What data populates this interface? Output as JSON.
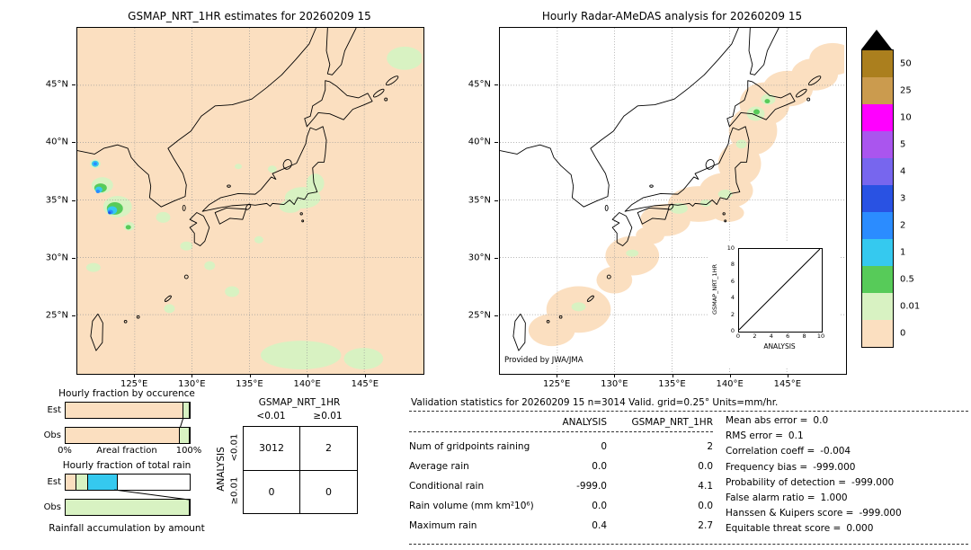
{
  "chart_data": [
    {
      "type": "heatmap",
      "title": "GSMAP_NRT_1HR estimates for 20260209 15",
      "x_ticks": [
        "125°E",
        "130°E",
        "135°E",
        "140°E",
        "145°E"
      ],
      "y_ticks": [
        "25°N",
        "30°N",
        "35°N",
        "40°N",
        "45°N"
      ],
      "units": "mm/hr",
      "levels": [
        0,
        0.01,
        0.5,
        1,
        2,
        3,
        4,
        5,
        10,
        25,
        50
      ],
      "notes": "mostly 0 (peach) with light-rain patches (0.01-0.5) and small intense cells (1-5 mm/hr) in the Yellow Sea west of Korea"
    },
    {
      "type": "heatmap",
      "title": "Hourly Radar-AMeDAS analysis for 20260209 15",
      "x_ticks": [
        "125°E",
        "130°E",
        "135°E",
        "140°E",
        "145°E"
      ],
      "y_ticks": [
        "25°N",
        "30°N",
        "35°N",
        "40°N",
        "45°N"
      ],
      "units": "mm/hr",
      "levels": [
        0,
        0.01,
        0.5,
        1,
        2,
        3,
        4,
        5,
        10,
        25,
        50
      ],
      "notes": "radar coverage band (0 values, peach) along the Japanese archipelago with scattered 0.01-0.5 patches"
    },
    {
      "type": "table",
      "title": "Contingency table",
      "columns": [
        "<0.01",
        "≥0.01"
      ],
      "rows": [
        "<0.01",
        "≥0.01"
      ],
      "values": [
        [
          3012,
          2
        ],
        [
          0,
          0
        ]
      ]
    },
    {
      "type": "table",
      "title": "Validation statistics",
      "columns": [
        "ANALYSIS",
        "GSMAP_NRT_1HR"
      ],
      "rows": [
        [
          "Num of gridpoints raining",
          0,
          2
        ],
        [
          "Average rain",
          0.0,
          0.0
        ],
        [
          "Conditional rain",
          -999.0,
          4.1
        ],
        [
          "Rain volume (mm km²10⁶)",
          0.0,
          0.0
        ],
        [
          "Maximum rain",
          0.4,
          2.7
        ]
      ]
    },
    {
      "type": "scatter",
      "title": "GSMAP_NRT_1HR vs ANALYSIS",
      "xlabel": "ANALYSIS",
      "ylabel": "GSMAP_NRT_1HR",
      "xlim": [
        0,
        10
      ],
      "ylim": [
        0,
        10
      ],
      "points": [],
      "identity_line": true
    },
    {
      "type": "bar",
      "title": "Hourly fraction by occurence",
      "categories": [
        "Est",
        "Obs"
      ],
      "series": [
        {
          "name": "0",
          "values": [
            0.955,
            0.93
          ]
        },
        {
          "name": "0.01-0.5",
          "values": [
            0.045,
            0.07
          ]
        }
      ]
    },
    {
      "type": "bar",
      "title": "Hourly fraction of total rain",
      "categories": [
        "Est",
        "Obs"
      ],
      "series": [
        {
          "name": "0",
          "values": [
            0.08,
            0
          ]
        },
        {
          "name": "0.01-0.5",
          "values": [
            0.09,
            1.0
          ]
        },
        {
          "name": "1-2",
          "values": [
            0.23,
            0
          ]
        }
      ]
    }
  ],
  "palette": {
    "peach": "#fbdfc0",
    "pale_green": "#d8f2c2",
    "green": "#57cb59",
    "cyan": "#35c9ef",
    "light_blue": "#2b8cff",
    "blue": "#2952e3",
    "blue_violet": "#7766ee",
    "violet": "#aa55ee",
    "magenta": "#ff00ff",
    "tan": "#cb9b4e",
    "dark_gold": "#ab7f1e",
    "over": "#000000"
  },
  "left_map": {
    "title": "GSMAP_NRT_1HR estimates for 20260209 15",
    "x_ticks": [
      "125°E",
      "130°E",
      "135°E",
      "140°E",
      "145°E"
    ],
    "y_ticks": [
      "45°N",
      "40°N",
      "35°N",
      "30°N",
      "25°N"
    ]
  },
  "right_map": {
    "title": "Hourly Radar-AMeDAS analysis for 20260209 15",
    "x_ticks": [
      "125°E",
      "130°E",
      "135°E",
      "140°E",
      "145°E"
    ],
    "y_ticks": [
      "45°N",
      "40°N",
      "35°N",
      "30°N",
      "25°N"
    ],
    "credit": "Provided by JWA/JMA",
    "inset": {
      "xlabel": "ANALYSIS",
      "ylabel": "GSMAP_NRT_1HR",
      "ticks": [
        "0",
        "2",
        "4",
        "6",
        "8",
        "10"
      ]
    }
  },
  "colorbar": {
    "labels": [
      "50",
      "25",
      "10",
      "5",
      "4",
      "3",
      "2",
      "1",
      "0.5",
      "0.01",
      "0"
    ],
    "colors": [
      "#ab7f1e",
      "#cb9b4e",
      "#ff00ff",
      "#aa55ee",
      "#7766ee",
      "#2952e3",
      "#2b8cff",
      "#35c9ef",
      "#57cb59",
      "#d8f2c2",
      "#fbdfc0"
    ]
  },
  "occurrence_chart": {
    "title": "Hourly fraction by occurence",
    "rows": [
      {
        "label": "Est",
        "segments": [
          {
            "color": "peach",
            "frac": 0.955
          },
          {
            "color": "pale_green",
            "frac": 0.045
          }
        ]
      },
      {
        "label": "Obs",
        "segments": [
          {
            "color": "peach",
            "frac": 0.93
          },
          {
            "color": "pale_green",
            "frac": 0.07
          }
        ]
      }
    ],
    "axis_zero": "0%",
    "axis_label": "Areal fraction",
    "axis_max": "100%"
  },
  "totalrain_chart": {
    "title": "Hourly fraction of total rain",
    "rows": [
      {
        "label": "Est",
        "segments": [
          {
            "color": "peach",
            "frac": 0.08
          },
          {
            "color": "pale_green",
            "frac": 0.09
          },
          {
            "color": "cyan",
            "frac": 0.23
          }
        ]
      },
      {
        "label": "Obs",
        "segments": [
          {
            "color": "pale_green",
            "frac": 1.0
          }
        ]
      }
    ],
    "caption": "Rainfall accumulation by amount"
  },
  "contingency": {
    "col_group_label": "GSMAP_NRT_1HR",
    "row_group_label": "ANALYSIS",
    "col_headers": [
      "<0.01",
      "≥0.01"
    ],
    "row_headers": [
      "<0.01",
      "≥0.01"
    ],
    "cells": [
      [
        "3012",
        "2"
      ],
      [
        "0",
        "0"
      ]
    ]
  },
  "stats": {
    "title": "Validation statistics for 20260209 15  n=3014 Valid. grid=0.25° Units=mm/hr.",
    "col_headers": [
      "ANALYSIS",
      "GSMAP_NRT_1HR"
    ],
    "rows": [
      {
        "label": "Num of gridpoints raining",
        "analysis": "0",
        "gsmap": "2"
      },
      {
        "label": "Average rain",
        "analysis": "0.0",
        "gsmap": "0.0"
      },
      {
        "label": "Conditional rain",
        "analysis": "-999.0",
        "gsmap": "4.1"
      },
      {
        "label": "Rain volume (mm km²10⁶)",
        "analysis": "0.0",
        "gsmap": "0.0"
      },
      {
        "label": "Maximum rain",
        "analysis": "0.4",
        "gsmap": "2.7"
      }
    ],
    "scores": [
      {
        "label": "Mean abs error",
        "value": "0.0"
      },
      {
        "label": "RMS error",
        "value": "0.1"
      },
      {
        "label": "Correlation coeff",
        "value": "-0.004"
      },
      {
        "label": "Frequency bias",
        "value": "-999.000"
      },
      {
        "label": "Probability of detection",
        "value": "-999.000"
      },
      {
        "label": "False alarm ratio",
        "value": "1.000"
      },
      {
        "label": "Hanssen & Kuipers score",
        "value": "-999.000"
      },
      {
        "label": "Equitable threat score",
        "value": "0.000"
      }
    ]
  }
}
